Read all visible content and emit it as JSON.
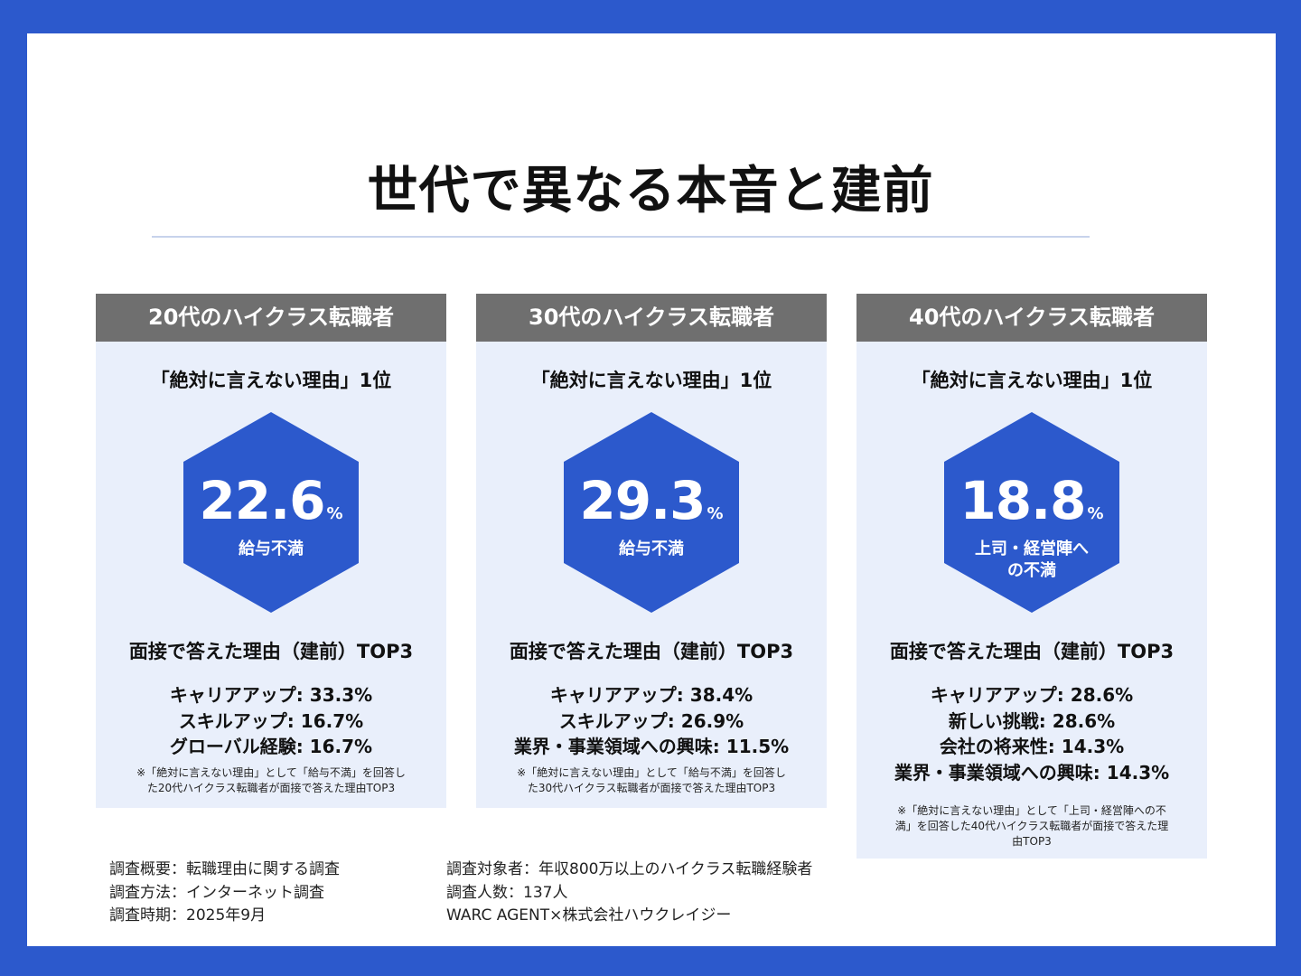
{
  "title": "世代で異なる本音と建前",
  "colors": {
    "frame": "#2c59cc",
    "hexagon": "#2c59cc",
    "card_background": "#e9effb",
    "card_header": "#6f6f6f"
  },
  "cards": [
    {
      "header": "20代のハイクラス転職者",
      "subtitle": "「絶対に言えない理由」1位",
      "percent": "22.6",
      "unit": "%",
      "reason_line1": "給与不満",
      "reason_line2": "",
      "top3_title": "面接で答えた理由（建前）TOP3",
      "top3": [
        "キャリアアップ: 33.3%",
        "スキルアップ: 16.7%",
        "グローバル経験: 16.7%"
      ],
      "note_line1": "※「絶対に言えない理由」として「給与不満」を回答し",
      "note_line2": "た20代ハイクラス転職者が面接で答えた理由TOP3",
      "note_line3": ""
    },
    {
      "header": "30代のハイクラス転職者",
      "subtitle": "「絶対に言えない理由」1位",
      "percent": "29.3",
      "unit": "%",
      "reason_line1": "給与不満",
      "reason_line2": "",
      "top3_title": "面接で答えた理由（建前）TOP3",
      "top3": [
        "キャリアアップ: 38.4%",
        "スキルアップ: 26.9%",
        "業界・事業領域への興味: 11.5%"
      ],
      "note_line1": "※「絶対に言えない理由」として「給与不満」を回答し",
      "note_line2": "た30代ハイクラス転職者が面接で答えた理由TOP3",
      "note_line3": ""
    },
    {
      "header": "40代のハイクラス転職者",
      "subtitle": "「絶対に言えない理由」1位",
      "percent": "18.8",
      "unit": "%",
      "reason_line1": "上司・経営陣へ",
      "reason_line2": "の不満",
      "top3_title": "面接で答えた理由（建前）TOP3",
      "top3": [
        "キャリアアップ: 28.6%",
        "新しい挑戦: 28.6%",
        "会社の将来性: 14.3%",
        "業界・事業領域への興味: 14.3%"
      ],
      "note_line1": "※「絶対に言えない理由」として「上司・経営陣への不",
      "note_line2": "満」を回答した40代ハイクラス転職者が面接で答えた理",
      "note_line3": "由TOP3"
    }
  ],
  "footer": {
    "left": [
      "調査概要：転職理由に関する調査",
      "調査方法：インターネット調査",
      "調査時期：2025年9月"
    ],
    "right": [
      "調査対象者：年収800万以上のハイクラス転職経験者",
      "調査人数：137人",
      "WARC AGENT×株式会社ハウクレイジー"
    ]
  }
}
